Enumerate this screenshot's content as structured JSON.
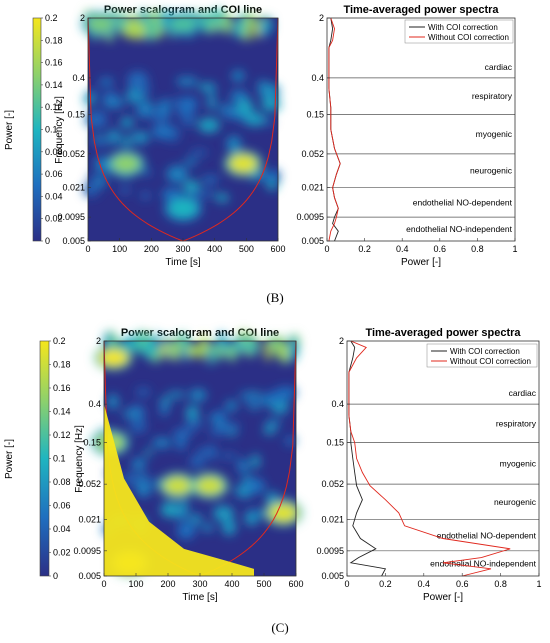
{
  "colors": {
    "scalogram_low": "#2b2f86",
    "scalogram_mid": "#1fb5c0",
    "scalogram_high": "#f5e61c",
    "with_coi": "#222222",
    "without_coi": "#e0281e",
    "coi_line": "#e0281e"
  },
  "chart_data": [
    {
      "type": "colorbar",
      "panel": "B",
      "label": "Power [-]",
      "range": [
        0,
        0.2
      ],
      "ticks": [
        "0",
        "0.02",
        "0.04",
        "0.06",
        "0.08",
        "0.1",
        "0.12",
        "0.14",
        "0.16",
        "0.18",
        "0.2"
      ]
    },
    {
      "type": "heatmap",
      "panel": "B",
      "title": "Power scalogram and COI line",
      "xlabel": "Time [s]",
      "ylabel": "Frequency [Hz]",
      "xlim": [
        0,
        600
      ],
      "ylim": [
        0.005,
        2
      ],
      "y_scale": "log",
      "xticks": [
        "0",
        "100",
        "200",
        "300",
        "400",
        "500",
        "600"
      ],
      "yticks": [
        "0.005",
        "0.0095",
        "0.021",
        "0.052",
        "0.15",
        "0.4",
        "2"
      ],
      "hotspots": [
        {
          "t": 40,
          "f": 1.7,
          "power": 0.14
        },
        {
          "t": 300,
          "f": 1.7,
          "power": 0.12
        },
        {
          "t": 120,
          "f": 0.04,
          "power": 0.15
        },
        {
          "t": 490,
          "f": 0.04,
          "power": 0.19
        },
        {
          "t": 300,
          "f": 0.012,
          "power": 0.1
        }
      ]
    },
    {
      "type": "line",
      "panel": "B",
      "title": "Time-averaged power spectra",
      "xlabel": "Power [-]",
      "xlim": [
        0,
        1
      ],
      "ylim": [
        0.005,
        2
      ],
      "y_scale": "log",
      "xticks": [
        "0",
        "0.2",
        "0.4",
        "0.6",
        "0.8",
        "1"
      ],
      "yticks": [
        "0.005",
        "0.0095",
        "0.021",
        "0.052",
        "0.15",
        "0.4",
        "2"
      ],
      "legend": "top-right",
      "band_edges": [
        0.0095,
        0.021,
        0.052,
        0.15,
        0.4
      ],
      "bands": [
        "cardiac",
        "respiratory",
        "myogenic",
        "neurogenic",
        "endothelial NO-dependent",
        "endothelial NO-independent"
      ],
      "series": [
        {
          "name": "With COI correction",
          "points": [
            [
              0.02,
              2
            ],
            [
              0.03,
              1.5
            ],
            [
              0.02,
              1.1
            ],
            [
              0.01,
              0.9
            ],
            [
              0.01,
              0.5
            ],
            [
              0.01,
              0.3
            ],
            [
              0.02,
              0.18
            ],
            [
              0.02,
              0.1
            ],
            [
              0.04,
              0.06
            ],
            [
              0.07,
              0.04
            ],
            [
              0.05,
              0.03
            ],
            [
              0.03,
              0.021
            ],
            [
              0.04,
              0.016
            ],
            [
              0.06,
              0.012
            ],
            [
              0.04,
              0.0095
            ],
            [
              0.03,
              0.008
            ],
            [
              0.06,
              0.0065
            ],
            [
              0.04,
              0.005
            ]
          ]
        },
        {
          "name": "Without COI correction",
          "points": [
            [
              0.02,
              2
            ],
            [
              0.04,
              1.5
            ],
            [
              0.03,
              1.1
            ],
            [
              0.01,
              0.9
            ],
            [
              0.01,
              0.5
            ],
            [
              0.01,
              0.3
            ],
            [
              0.02,
              0.18
            ],
            [
              0.02,
              0.1
            ],
            [
              0.04,
              0.06
            ],
            [
              0.07,
              0.04
            ],
            [
              0.05,
              0.03
            ],
            [
              0.03,
              0.021
            ],
            [
              0.04,
              0.016
            ],
            [
              0.06,
              0.012
            ],
            [
              0.05,
              0.0095
            ],
            [
              0.04,
              0.008
            ],
            [
              0.02,
              0.0065
            ],
            [
              0.01,
              0.005
            ]
          ]
        }
      ]
    },
    {
      "type": "colorbar",
      "panel": "C",
      "label": "Power [-]",
      "range": [
        0,
        0.2
      ],
      "ticks": [
        "0",
        "0.02",
        "0.04",
        "0.06",
        "0.08",
        "0.1",
        "0.12",
        "0.14",
        "0.16",
        "0.18",
        "0.2"
      ]
    },
    {
      "type": "heatmap",
      "panel": "C",
      "title": "Power scalogram and COI line",
      "xlabel": "Time [s]",
      "ylabel": "Frequency [Hz]",
      "xlim": [
        0,
        600
      ],
      "ylim": [
        0.005,
        2
      ],
      "y_scale": "log",
      "xticks": [
        "0",
        "100",
        "200",
        "300",
        "400",
        "500",
        "600"
      ],
      "yticks": [
        "0.005",
        "0.0095",
        "0.021",
        "0.052",
        "0.15",
        "0.4",
        "2"
      ],
      "hotspots": [
        {
          "t": 30,
          "f": 1.3,
          "power": 0.2
        },
        {
          "t": 20,
          "f": 0.15,
          "power": 0.16
        },
        {
          "t": 230,
          "f": 0.05,
          "power": 0.18
        },
        {
          "t": 330,
          "f": 0.05,
          "power": 0.18
        },
        {
          "t": 560,
          "f": 0.025,
          "power": 0.19
        },
        {
          "t": 80,
          "f": 0.007,
          "power": 0.2
        }
      ]
    },
    {
      "type": "line",
      "panel": "C",
      "title": "Time-averaged power spectra",
      "xlabel": "Power [-]",
      "xlim": [
        0,
        1
      ],
      "ylim": [
        0.005,
        2
      ],
      "y_scale": "log",
      "xticks": [
        "0",
        "0.2",
        "0.4",
        "0.6",
        "0.8",
        "1"
      ],
      "yticks": [
        "0.005",
        "0.0095",
        "0.021",
        "0.052",
        "0.15",
        "0.4",
        "2"
      ],
      "legend": "top-right",
      "band_edges": [
        0.0095,
        0.021,
        0.052,
        0.15,
        0.4
      ],
      "bands": [
        "cardiac",
        "respiratory",
        "myogenic",
        "neurogenic",
        "endothelial NO-dependent",
        "endothelial NO-independent"
      ],
      "series": [
        {
          "name": "With COI correction",
          "points": [
            [
              0.02,
              2
            ],
            [
              0.04,
              1.7
            ],
            [
              0.03,
              1.3
            ],
            [
              0.01,
              0.9
            ],
            [
              0.01,
              0.5
            ],
            [
              0.01,
              0.3
            ],
            [
              0.02,
              0.2
            ],
            [
              0.02,
              0.15
            ],
            [
              0.03,
              0.1
            ],
            [
              0.04,
              0.07
            ],
            [
              0.05,
              0.05
            ],
            [
              0.08,
              0.035
            ],
            [
              0.05,
              0.025
            ],
            [
              0.03,
              0.018
            ],
            [
              0.07,
              0.013
            ],
            [
              0.15,
              0.01
            ],
            [
              0.06,
              0.008
            ],
            [
              0.02,
              0.007
            ],
            [
              0.2,
              0.006
            ],
            [
              0.18,
              0.005
            ]
          ]
        },
        {
          "name": "Without COI correction",
          "points": [
            [
              0.02,
              2
            ],
            [
              0.1,
              1.7
            ],
            [
              0.05,
              1.3
            ],
            [
              0.01,
              0.9
            ],
            [
              0.01,
              0.5
            ],
            [
              0.01,
              0.3
            ],
            [
              0.02,
              0.2
            ],
            [
              0.04,
              0.15
            ],
            [
              0.05,
              0.1
            ],
            [
              0.08,
              0.07
            ],
            [
              0.12,
              0.05
            ],
            [
              0.2,
              0.035
            ],
            [
              0.27,
              0.025
            ],
            [
              0.3,
              0.018
            ],
            [
              0.5,
              0.013
            ],
            [
              0.85,
              0.01
            ],
            [
              0.7,
              0.008
            ],
            [
              0.5,
              0.007
            ],
            [
              0.75,
              0.006
            ],
            [
              0.6,
              0.005
            ]
          ]
        }
      ]
    }
  ],
  "captions": {
    "b": "(B)",
    "c": "(C)"
  }
}
